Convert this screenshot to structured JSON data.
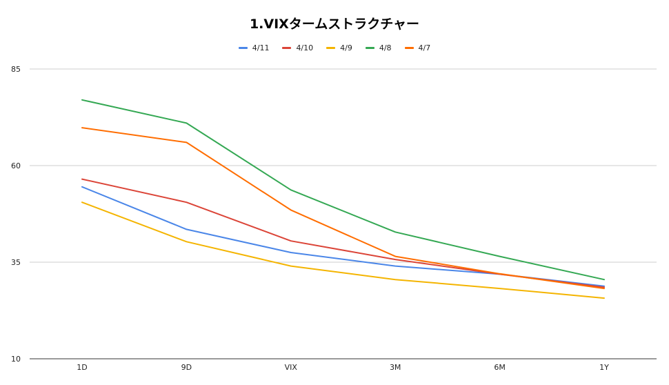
{
  "chart_data": {
    "type": "line",
    "title": "1.VIXタームストラクチャー",
    "xlabel": "",
    "ylabel": "",
    "categories": [
      "1D",
      "9D",
      "VIX",
      "3M",
      "6M",
      "1Y"
    ],
    "y_ticks": [
      "85",
      "60",
      "35",
      "10"
    ],
    "ylim": [
      10,
      85
    ],
    "grid": true,
    "legend_position": "top",
    "series": [
      {
        "name": "4/11",
        "color": "#4a86e8",
        "values": [
          54.5,
          43.5,
          37.5,
          34.0,
          31.9,
          28.8
        ]
      },
      {
        "name": "4/10",
        "color": "#db4437",
        "values": [
          56.5,
          50.5,
          40.5,
          35.7,
          31.9,
          28.5
        ]
      },
      {
        "name": "4/9",
        "color": "#f4b400",
        "values": [
          50.5,
          40.3,
          34.0,
          30.5,
          28.2,
          25.7
        ]
      },
      {
        "name": "4/8",
        "color": "#34a853",
        "values": [
          77.0,
          71.0,
          53.7,
          42.8,
          36.5,
          30.5
        ]
      },
      {
        "name": "4/7",
        "color": "#ff6d00",
        "values": [
          69.8,
          66.0,
          48.5,
          36.5,
          32.0,
          28.2
        ]
      }
    ]
  }
}
